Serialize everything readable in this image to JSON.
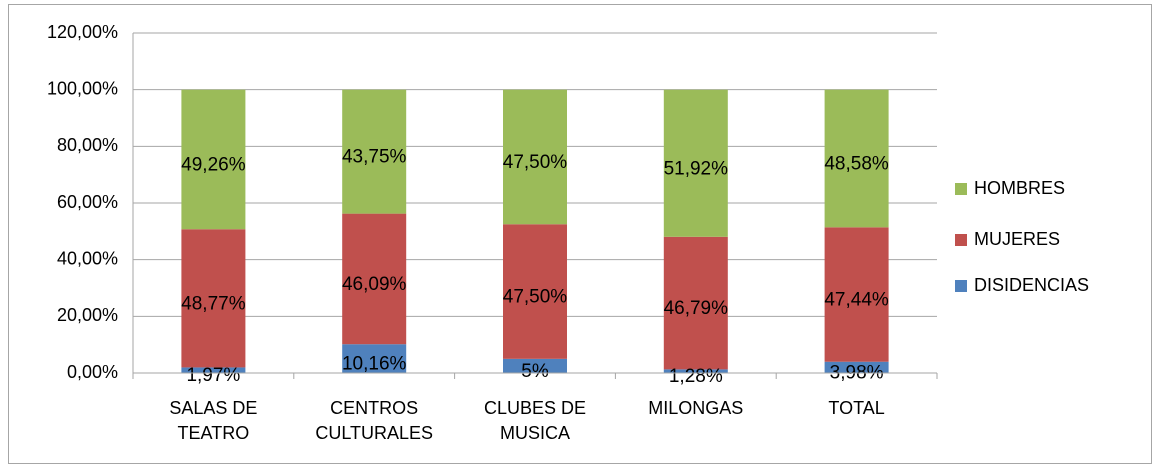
{
  "chart_data": {
    "type": "stacked_bar",
    "categories": [
      "SALAS DE TEATRO",
      "CENTROS CULTURALES",
      "CLUBES DE MUSICA",
      "MILONGAS",
      "TOTAL"
    ],
    "series": [
      {
        "name": "DISIDENCIAS",
        "color": "#4f81bd",
        "values": [
          1.97,
          10.16,
          5,
          1.28,
          3.98
        ],
        "value_labels": [
          "1,97%",
          "10,16%",
          "5%",
          "1,28%",
          "3,98%"
        ]
      },
      {
        "name": "MUJERES",
        "color": "#c0504d",
        "values": [
          48.77,
          46.09,
          47.5,
          46.79,
          47.44
        ],
        "value_labels": [
          "48,77%",
          "46,09%",
          "47,50%",
          "46,79%",
          "47,44%"
        ]
      },
      {
        "name": "HOMBRES",
        "color": "#9bbb59",
        "values": [
          49.26,
          43.75,
          47.5,
          51.92,
          48.58
        ],
        "value_labels": [
          "49,26%",
          "43,75%",
          "47,50%",
          "51,92%",
          "48,58%"
        ]
      }
    ],
    "ylim": [
      0,
      120
    ],
    "yticks": [
      {
        "value": 0,
        "label": "0,00%"
      },
      {
        "value": 20,
        "label": "20,00%"
      },
      {
        "value": 40,
        "label": "40,00%"
      },
      {
        "value": 60,
        "label": "60,00%"
      },
      {
        "value": 80,
        "label": "80,00%"
      },
      {
        "value": 100,
        "label": "100,00%"
      },
      {
        "value": 120,
        "label": "120,00%"
      }
    ],
    "grid": true,
    "legend": "right"
  }
}
